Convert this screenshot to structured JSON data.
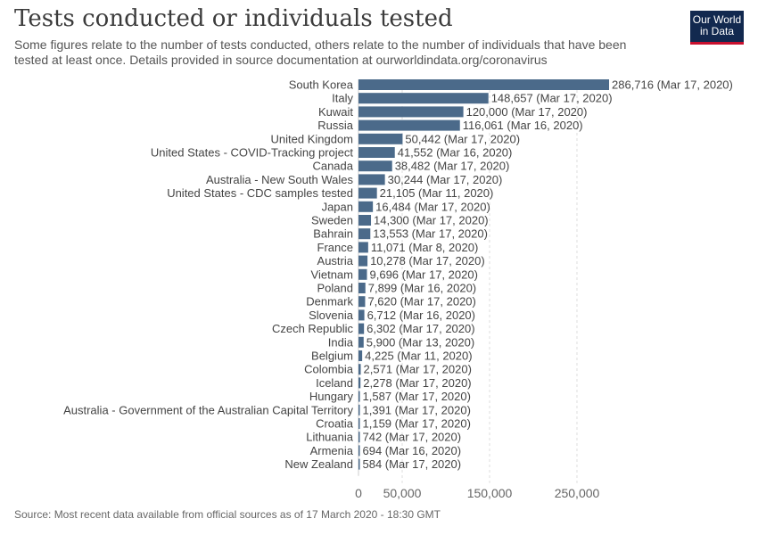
{
  "header": {
    "title": "Tests conducted or individuals tested",
    "subtitle": "Some figures relate to the number of tests conducted, others relate to the number of individuals that have been tested at least once. Details provided in source documentation at ourworldindata.org/coronavirus",
    "logo_line1": "Our World",
    "logo_line2": "in Data"
  },
  "footer": {
    "source": "Source: Most recent data available from official sources as of 17 March 2020 - 18:30 GMT"
  },
  "colors": {
    "bar": "#4b6a8a",
    "text": "#444444",
    "grid": "#dddddd",
    "logo_bg": "#12294f",
    "logo_accent": "#c8102e"
  },
  "chart_data": {
    "type": "bar",
    "orientation": "horizontal",
    "grid": true,
    "xlim": [
      0,
      286716
    ],
    "xticks": [
      {
        "value": 0,
        "label": "0"
      },
      {
        "value": 50000,
        "label": "50,000"
      },
      {
        "value": 150000,
        "label": "150,000"
      },
      {
        "value": 250000,
        "label": "250,000"
      }
    ],
    "bars": [
      {
        "category": "South Korea",
        "value": 286716,
        "label": "286,716 (Mar 17, 2020)"
      },
      {
        "category": "Italy",
        "value": 148657,
        "label": "148,657 (Mar 17, 2020)"
      },
      {
        "category": "Kuwait",
        "value": 120000,
        "label": "120,000 (Mar 17, 2020)"
      },
      {
        "category": "Russia",
        "value": 116061,
        "label": "116,061 (Mar 16, 2020)"
      },
      {
        "category": "United Kingdom",
        "value": 50442,
        "label": "50,442 (Mar 17, 2020)"
      },
      {
        "category": "United States - COVID-Tracking project",
        "value": 41552,
        "label": "41,552 (Mar 16, 2020)"
      },
      {
        "category": "Canada",
        "value": 38482,
        "label": "38,482 (Mar 17, 2020)"
      },
      {
        "category": "Australia - New South Wales",
        "value": 30244,
        "label": "30,244 (Mar 17, 2020)"
      },
      {
        "category": "United States - CDC samples tested",
        "value": 21105,
        "label": "21,105 (Mar 11, 2020)"
      },
      {
        "category": "Japan",
        "value": 16484,
        "label": "16,484 (Mar 17, 2020)"
      },
      {
        "category": "Sweden",
        "value": 14300,
        "label": "14,300 (Mar 17, 2020)"
      },
      {
        "category": "Bahrain",
        "value": 13553,
        "label": "13,553 (Mar 17, 2020)"
      },
      {
        "category": "France",
        "value": 11071,
        "label": "11,071 (Mar 8, 2020)"
      },
      {
        "category": "Austria",
        "value": 10278,
        "label": "10,278 (Mar 17, 2020)"
      },
      {
        "category": "Vietnam",
        "value": 9696,
        "label": "9,696 (Mar 17, 2020)"
      },
      {
        "category": "Poland",
        "value": 7899,
        "label": "7,899 (Mar 16, 2020)"
      },
      {
        "category": "Denmark",
        "value": 7620,
        "label": "7,620 (Mar 17, 2020)"
      },
      {
        "category": "Slovenia",
        "value": 6712,
        "label": "6,712 (Mar 16, 2020)"
      },
      {
        "category": "Czech Republic",
        "value": 6302,
        "label": "6,302 (Mar 17, 2020)"
      },
      {
        "category": "India",
        "value": 5900,
        "label": "5,900 (Mar 13, 2020)"
      },
      {
        "category": "Belgium",
        "value": 4225,
        "label": "4,225 (Mar 11, 2020)"
      },
      {
        "category": "Colombia",
        "value": 2571,
        "label": "2,571 (Mar 17, 2020)"
      },
      {
        "category": "Iceland",
        "value": 2278,
        "label": "2,278 (Mar 17, 2020)"
      },
      {
        "category": "Hungary",
        "value": 1587,
        "label": "1,587 (Mar 17, 2020)"
      },
      {
        "category": "Australia - Government of the Australian Capital Territory",
        "value": 1391,
        "label": "1,391 (Mar 17, 2020)"
      },
      {
        "category": "Croatia",
        "value": 1159,
        "label": "1,159 (Mar 17, 2020)"
      },
      {
        "category": "Lithuania",
        "value": 742,
        "label": "742 (Mar 17, 2020)"
      },
      {
        "category": "Armenia",
        "value": 694,
        "label": "694 (Mar 16, 2020)"
      },
      {
        "category": "New Zealand",
        "value": 584,
        "label": "584 (Mar 17, 2020)"
      }
    ]
  }
}
